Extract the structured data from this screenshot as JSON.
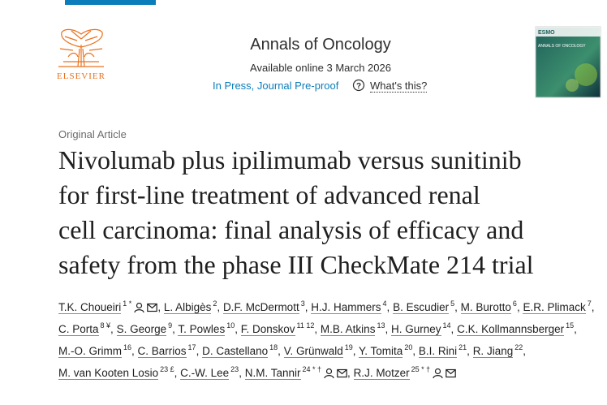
{
  "header": {
    "journal": "Annals of Oncology",
    "available": "Available online 3 March 2026",
    "status": "In Press, Journal Pre-proof",
    "help": "What's this?",
    "publisher": "ELSEVIER",
    "cover": {
      "brand": "ESMO",
      "title": "ANNALS OF ONCOLOGY"
    }
  },
  "article": {
    "type": "Original Article",
    "title_lines": [
      "Nivolumab plus ipilimumab versus sunitinib",
      "for first-line treatment of advanced renal",
      "cell carcinoma: final analysis of efficacy and",
      "safety from the phase III CheckMate 214 trial"
    ],
    "separator": ",",
    "authors": [
      {
        "name": "T.K. Choueiri",
        "refs": "1 *",
        "contact": true
      },
      {
        "name": "L. Albigès",
        "refs": "2",
        "contact": false
      },
      {
        "name": "D.F. McDermott",
        "refs": "3",
        "contact": false
      },
      {
        "name": "H.J. Hammers",
        "refs": "4",
        "contact": false
      },
      {
        "name": "B. Escudier",
        "refs": "5",
        "contact": false
      },
      {
        "name": "M. Burotto",
        "refs": "6",
        "contact": false
      },
      {
        "name": "E.R. Plimack",
        "refs": "7",
        "contact": false
      },
      {
        "name": "C. Porta",
        "refs": "8 ¥",
        "contact": false
      },
      {
        "name": "S. George",
        "refs": "9",
        "contact": false
      },
      {
        "name": "T. Powles",
        "refs": "10",
        "contact": false
      },
      {
        "name": "F. Donskov",
        "refs": "11 12",
        "contact": false
      },
      {
        "name": "M.B. Atkins",
        "refs": "13",
        "contact": false
      },
      {
        "name": "H. Gurney",
        "refs": "14",
        "contact": false
      },
      {
        "name": "C.K. Kollmannsberger",
        "refs": "15",
        "contact": false
      },
      {
        "name": "M.-O. Grimm",
        "refs": "16",
        "contact": false
      },
      {
        "name": "C. Barrios",
        "refs": "17",
        "contact": false
      },
      {
        "name": "D. Castellano",
        "refs": "18",
        "contact": false
      },
      {
        "name": "V. Grünwald",
        "refs": "19",
        "contact": false
      },
      {
        "name": "Y. Tomita",
        "refs": "20",
        "contact": false
      },
      {
        "name": "B.I. Rini",
        "refs": "21",
        "contact": false
      },
      {
        "name": "R. Jiang",
        "refs": "22",
        "contact": false
      },
      {
        "name": "M. van Kooten Losio",
        "refs": "23 £",
        "contact": false
      },
      {
        "name": "C.-W. Lee",
        "refs": "23",
        "contact": false
      },
      {
        "name": "N.M. Tannir",
        "refs": "24 * †",
        "contact": true
      },
      {
        "name": "R.J. Motzer",
        "refs": "25 * †",
        "contact": true
      }
    ]
  }
}
